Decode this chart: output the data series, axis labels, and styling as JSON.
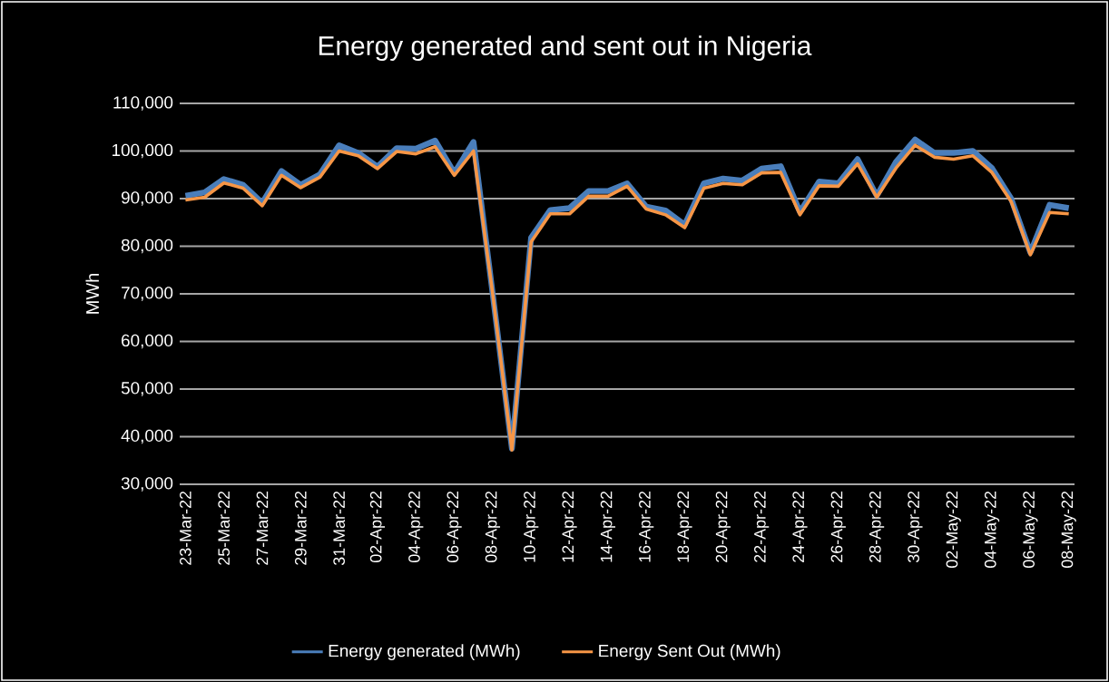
{
  "chart_data": {
    "type": "line",
    "title": "Energy generated and sent out in Nigeria",
    "ylabel": "MWh",
    "categories": [
      "23-Mar-22",
      null,
      "25-Mar-22",
      null,
      "27-Mar-22",
      null,
      "29-Mar-22",
      null,
      "31-Mar-22",
      null,
      "02-Apr-22",
      null,
      "04-Apr-22",
      null,
      "06-Apr-22",
      null,
      "08-Apr-22",
      null,
      "10-Apr-22",
      null,
      "12-Apr-22",
      null,
      "14-Apr-22",
      null,
      "16-Apr-22",
      null,
      "18-Apr-22",
      null,
      "20-Apr-22",
      null,
      "22-Apr-22",
      null,
      "24-Apr-22",
      null,
      "26-Apr-22",
      null,
      "28-Apr-22",
      null,
      "30-Apr-22",
      null,
      "02-May-22",
      null,
      "04-May-22",
      null,
      "06-May-22",
      null,
      "08-May-22"
    ],
    "series": [
      {
        "name": "Energy generated (MWh)",
        "color": "#4a7ebb",
        "values": [
          90600,
          91300,
          94100,
          92900,
          89100,
          95800,
          92900,
          95100,
          101200,
          99600,
          96700,
          100600,
          100500,
          102200,
          95400,
          101900,
          70000,
          37500,
          81800,
          87600,
          88000,
          91600,
          91600,
          93200,
          88300,
          87500,
          84500,
          93200,
          94200,
          93800,
          96300,
          96800,
          87200,
          93600,
          93200,
          98300,
          90600,
          97700,
          102400,
          99600,
          99600,
          100000,
          96400,
          90000,
          78700,
          88700,
          88000
        ]
      },
      {
        "name": "Energy Sent Out (MWh)",
        "color": "#f79646",
        "values": [
          89700,
          90300,
          93300,
          92200,
          88500,
          94900,
          92300,
          94500,
          100000,
          99000,
          96300,
          99900,
          99400,
          100900,
          94900,
          100000,
          70000,
          37200,
          80900,
          86800,
          86800,
          90500,
          90500,
          92600,
          87800,
          86600,
          83900,
          92200,
          93200,
          92900,
          95400,
          95500,
          86600,
          92700,
          92600,
          97300,
          90300,
          96400,
          101200,
          98700,
          98300,
          99000,
          95500,
          89400,
          78200,
          87100,
          86800
        ]
      }
    ],
    "ylim": [
      30000,
      110000
    ],
    "yticks": [
      {
        "value": 30000,
        "label": "30,000"
      },
      {
        "value": 40000,
        "label": "40,000"
      },
      {
        "value": 50000,
        "label": "50,000"
      },
      {
        "value": 60000,
        "label": "60,000"
      },
      {
        "value": 70000,
        "label": "70,000"
      },
      {
        "value": 80000,
        "label": "80,000"
      },
      {
        "value": 90000,
        "label": "90,000"
      },
      {
        "value": 100000,
        "label": "100,000"
      },
      {
        "value": 110000,
        "label": "110,000"
      }
    ],
    "grid": "y",
    "legend": "bottom",
    "marker": "none",
    "line_style": "solid"
  }
}
